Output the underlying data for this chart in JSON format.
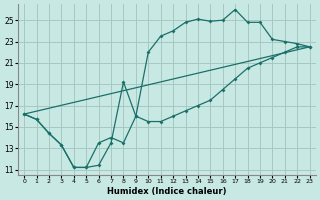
{
  "xlabel": "Humidex (Indice chaleur)",
  "bg_color": "#c8e8e4",
  "line_color": "#1a7068",
  "grid_color": "#a8c8c4",
  "xlim": [
    -0.5,
    23.5
  ],
  "ylim": [
    10.5,
    26.5
  ],
  "xticks": [
    0,
    1,
    2,
    3,
    4,
    5,
    6,
    7,
    8,
    9,
    10,
    11,
    12,
    13,
    14,
    15,
    16,
    17,
    18,
    19,
    20,
    21,
    22,
    23
  ],
  "yticks": [
    11,
    13,
    15,
    17,
    19,
    21,
    23,
    25
  ],
  "curve1_x": [
    0,
    1,
    2,
    3,
    4,
    5,
    6,
    7,
    8,
    9,
    10,
    11,
    12,
    13,
    14,
    15,
    16,
    17,
    18,
    19,
    20,
    21,
    22,
    23
  ],
  "curve1_y": [
    16.2,
    15.7,
    14.4,
    13.3,
    11.2,
    11.2,
    11.4,
    13.5,
    19.2,
    16.0,
    15.5,
    15.5,
    16.0,
    16.5,
    17.0,
    17.5,
    18.5,
    19.5,
    20.5,
    21.0,
    21.5,
    22.0,
    22.5,
    22.5
  ],
  "curve2_x": [
    0,
    1,
    2,
    3,
    4,
    5,
    6,
    7,
    8,
    9,
    10,
    11,
    12,
    13,
    14,
    15,
    16,
    17,
    18,
    19,
    20,
    21,
    22,
    23
  ],
  "curve2_y": [
    16.2,
    15.7,
    14.4,
    13.3,
    11.2,
    11.2,
    13.5,
    14.0,
    13.5,
    16.0,
    22.0,
    23.5,
    24.0,
    24.8,
    25.1,
    24.9,
    25.0,
    26.0,
    24.8,
    24.8,
    23.2,
    23.0,
    22.8,
    22.5
  ],
  "curve3_x": [
    0,
    23
  ],
  "curve3_y": [
    16.2,
    22.5
  ]
}
